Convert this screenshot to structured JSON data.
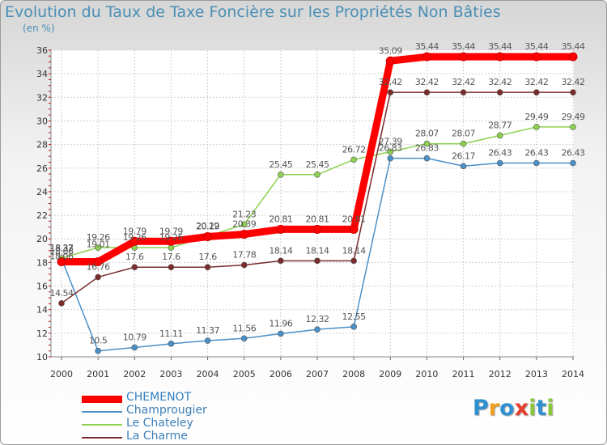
{
  "chart_data": {
    "type": "line",
    "title": "Evolution du Taux de Taxe Foncière sur les Propriétés Non Bâties",
    "ylabel": "(en %)",
    "xlabel": "",
    "ylim": [
      10,
      36
    ],
    "ytick_step": 2,
    "grid": true,
    "categories": [
      "2000",
      "2001",
      "2002",
      "2003",
      "2004",
      "2005",
      "2006",
      "2007",
      "2008",
      "2009",
      "2010",
      "2011",
      "2012",
      "2013",
      "2014"
    ],
    "series": [
      {
        "name": "CHEMENOT",
        "color": "#ff0000",
        "values": [
          18.06,
          18.06,
          19.79,
          19.79,
          20.19,
          20.39,
          20.81,
          20.81,
          20.81,
          35.09,
          35.44,
          35.44,
          35.44,
          35.44,
          35.44
        ],
        "labels": [
          "18.06",
          "",
          "19.79",
          "19.79",
          "20.19",
          "20.39",
          "20.81",
          "20.81",
          "20.81",
          "35.09",
          "35.44",
          "35.44",
          "35.44",
          "35.44",
          "35.44"
        ]
      },
      {
        "name": "Champrougier",
        "color": "#4a90c8",
        "values": [
          18.33,
          10.5,
          10.79,
          11.11,
          11.37,
          11.56,
          11.96,
          12.32,
          12.55,
          26.83,
          26.83,
          26.17,
          26.43,
          26.43,
          26.43
        ],
        "labels": [
          "18.33",
          "10.5",
          "10.79",
          "11.11",
          "11.37",
          "11.56",
          "11.96",
          "12.32",
          "12.55",
          "26.83",
          "26.83",
          "26.17",
          "26.43",
          "26.43",
          "26.43"
        ]
      },
      {
        "name": "Le Chateley",
        "color": "#8dd14f",
        "values": [
          18.37,
          19.26,
          19.26,
          19.26,
          20.22,
          21.23,
          25.45,
          25.45,
          26.72,
          27.39,
          28.07,
          28.07,
          28.77,
          29.49,
          29.49
        ],
        "labels": [
          "18.37",
          "19.26",
          "19.26",
          "19.26",
          "20.22",
          "21.23",
          "25.45",
          "25.45",
          "26.72",
          "27.39",
          "28.07",
          "28.07",
          "28.77",
          "29.49",
          "29.49"
        ]
      },
      {
        "name": "La Charme",
        "color": "#7a2c2c",
        "values": [
          14.54,
          16.76,
          17.6,
          17.6,
          17.6,
          17.78,
          18.14,
          18.14,
          18.14,
          32.42,
          32.42,
          32.42,
          32.42,
          32.42,
          32.42
        ],
        "labels": [
          "14.54",
          "16.76",
          "17.6",
          "17.6",
          "17.6",
          "17.78",
          "18.14",
          "18.14",
          "18.14",
          "32.42",
          "32.42",
          "32.42",
          "32.42",
          "32.42",
          "32.42"
        ]
      }
    ],
    "extra_labels": [
      "18.06",
      "19.01"
    ]
  },
  "brand": {
    "letters": [
      {
        "ch": "P",
        "color": "#2f8fd0"
      },
      {
        "ch": "r",
        "color": "#f0a020"
      },
      {
        "ch": "o",
        "color": "#2f8fd0"
      },
      {
        "ch": "x",
        "color": "#e83e2c"
      },
      {
        "ch": "i",
        "color": "#8cc63f"
      },
      {
        "ch": "t",
        "color": "#2f8fd0"
      },
      {
        "ch": "i",
        "color": "#8cc63f"
      }
    ]
  }
}
